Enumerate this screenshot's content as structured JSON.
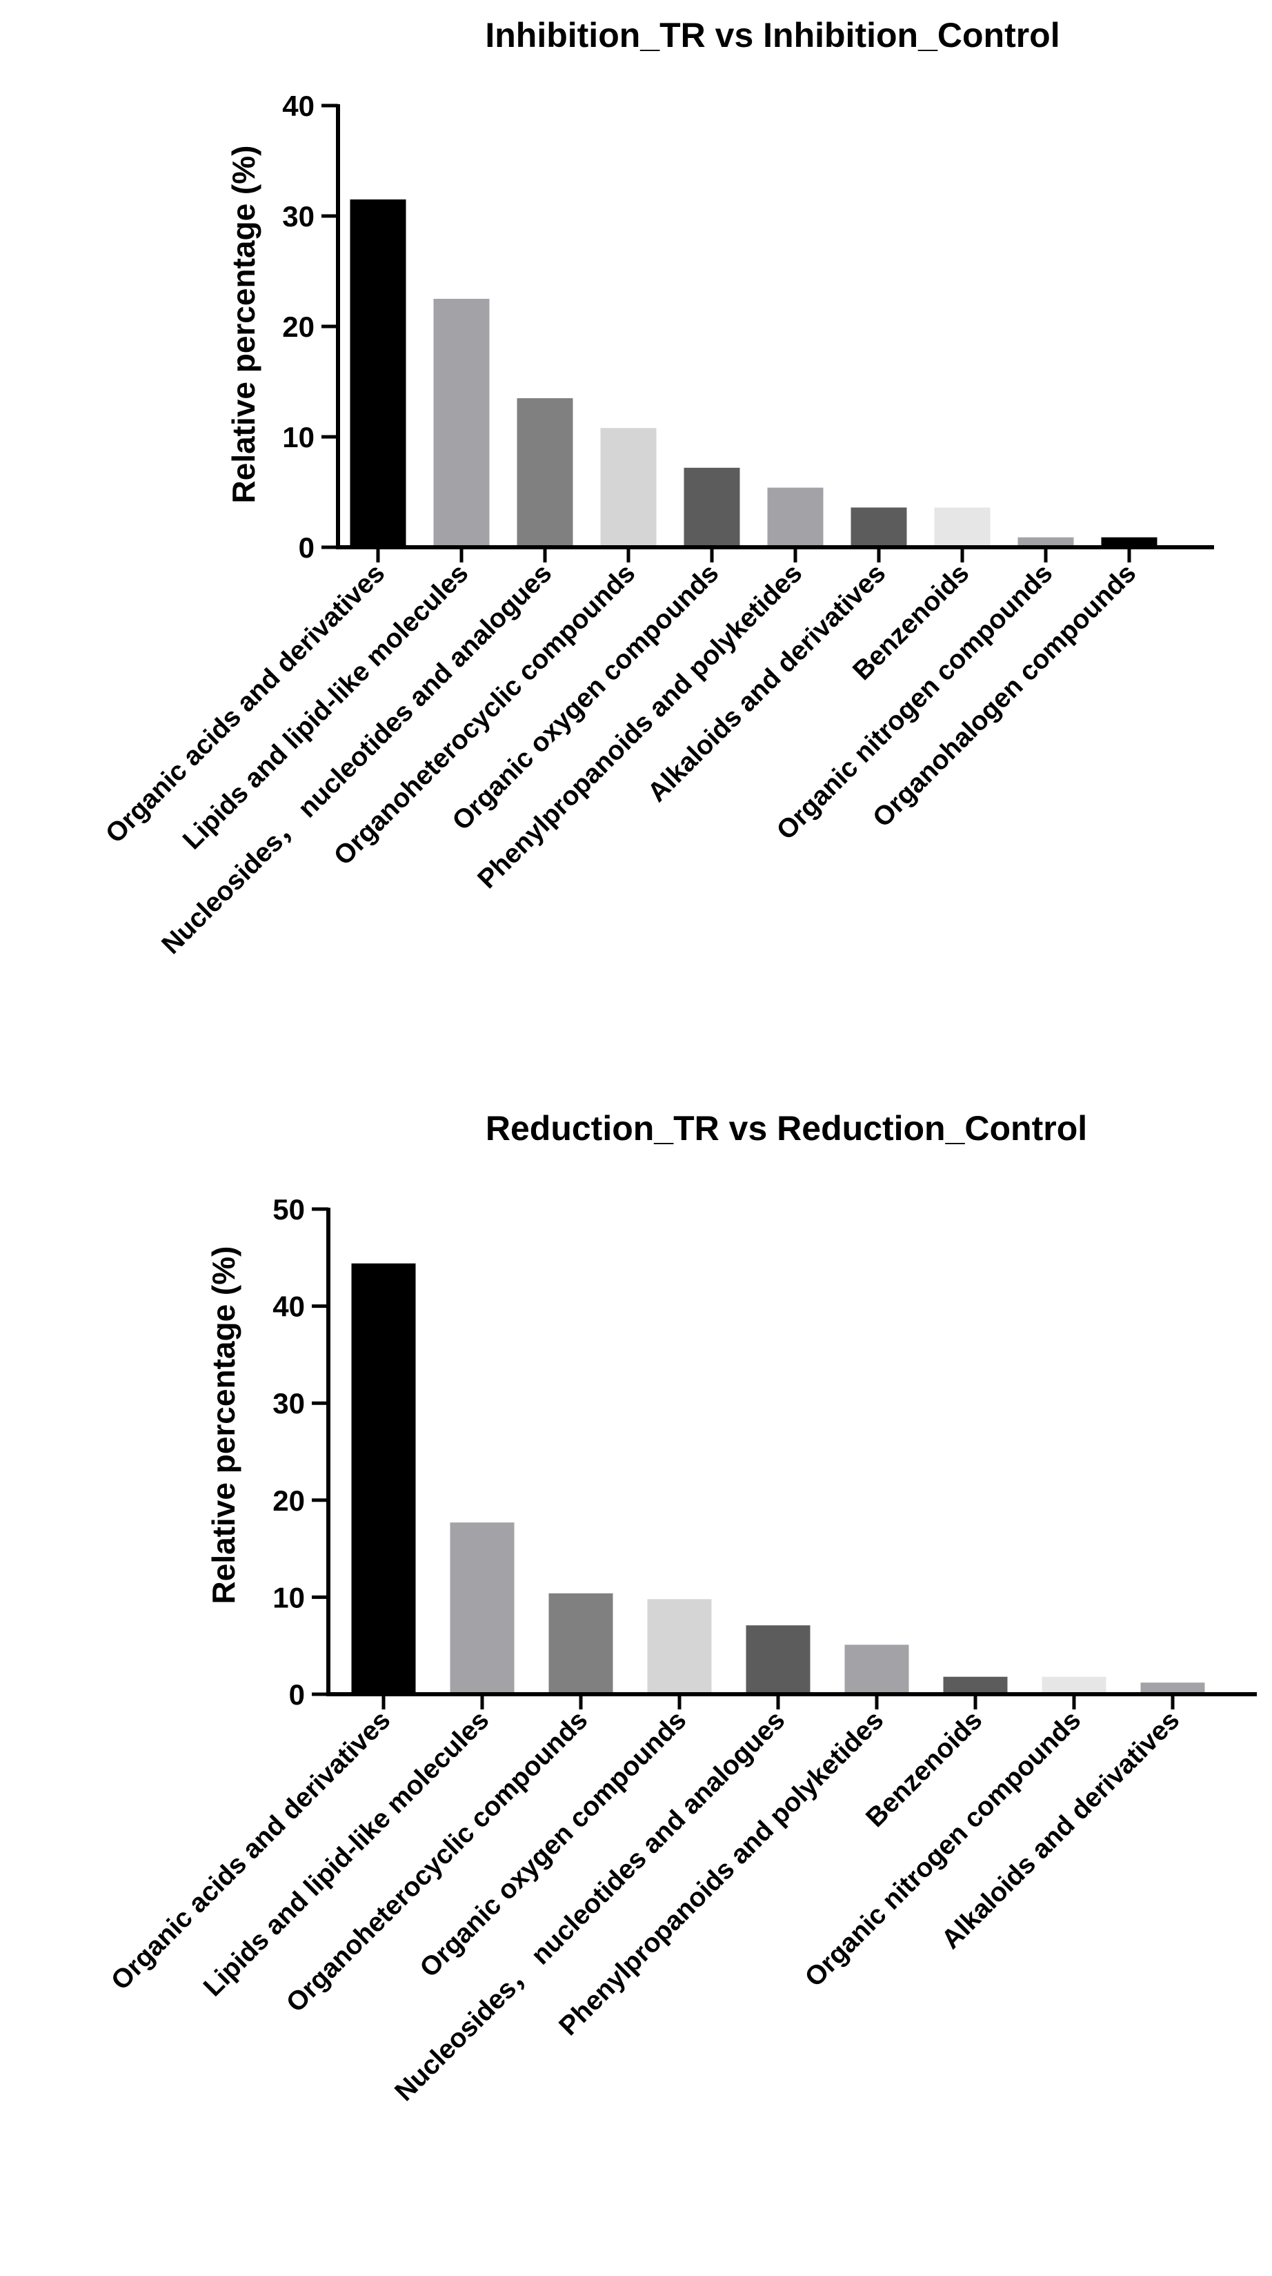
{
  "chart_data": [
    {
      "type": "bar",
      "title": "Inhibition_TR vs Inhibition_Control",
      "xlabel": "",
      "ylabel": "Relative percentage (%)",
      "ylim": [
        0,
        40
      ],
      "yticks": [
        0,
        10,
        20,
        30,
        40
      ],
      "grid": false,
      "categories": [
        "Organic acids and derivatives",
        "Lipids and lipid-like molecules",
        "Nucleosides， nucleotides and analogues",
        "Organoheterocyclic compounds",
        "Organic oxygen compounds",
        "Phenylpropanoids and polyketides",
        "Alkaloids and derivatives",
        "Benzenoids",
        "Organic nitrogen compounds",
        "Organohalogen compounds"
      ],
      "values": [
        31.5,
        22.5,
        13.5,
        10.8,
        7.2,
        5.4,
        3.6,
        3.6,
        0.9,
        0.9
      ],
      "colors": [
        "#000000",
        "#a3a2a6",
        "#808080",
        "#d5d5d5",
        "#5c5c5c",
        "#a3a2a6",
        "#5c5c5c",
        "#e6e6e6",
        "#a3a2a6",
        "#000000"
      ]
    },
    {
      "type": "bar",
      "title": "Reduction_TR vs Reduction_Control",
      "xlabel": "",
      "ylabel": "Relative percentage (%)",
      "ylim": [
        0,
        50
      ],
      "yticks": [
        0,
        10,
        20,
        30,
        40,
        50
      ],
      "grid": false,
      "categories": [
        "Organic acids and derivatives",
        "Lipids and lipid-like molecules",
        "Organoheterocyclic compounds",
        "Organic oxygen compounds",
        "Nucleosides， nucleotides and analogues",
        "Phenylpropanoids and polyketides",
        "Benzenoids",
        "Organic nitrogen compounds",
        "Alkaloids and derivatives"
      ],
      "values": [
        44.4,
        17.7,
        10.4,
        9.8,
        7.1,
        5.1,
        1.8,
        1.8,
        1.2
      ],
      "colors": [
        "#000000",
        "#a3a2a6",
        "#808080",
        "#d5d5d5",
        "#5c5c5c",
        "#a3a2a6",
        "#5c5c5c",
        "#e6e6e6",
        "#a3a2a6"
      ]
    }
  ]
}
